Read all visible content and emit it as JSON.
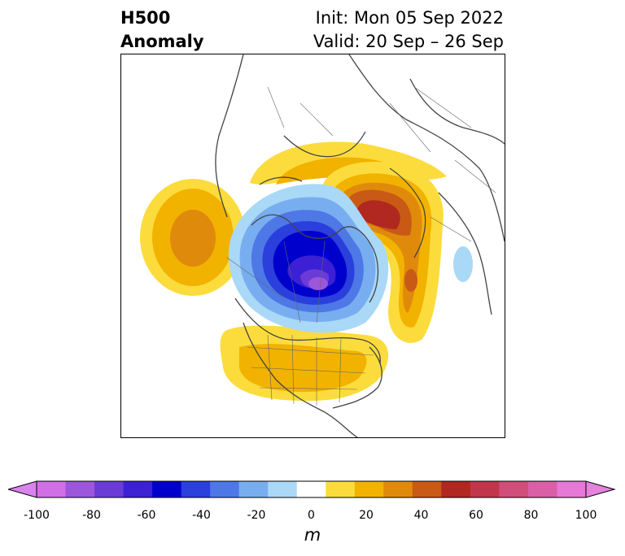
{
  "header": {
    "title_line1": "H500",
    "title_line2": "Anomaly",
    "init_text": "Init: Mon 05 Sep 2022",
    "valid_text": "Valid: 20 Sep – 26 Sep"
  },
  "map": {
    "projection": "north-polar-stereographic",
    "field": "500 hPa geopotential height anomaly",
    "features": [
      {
        "name": "negative-anomaly-arctic-canada",
        "sign": "negative",
        "peak_value": -100
      },
      {
        "name": "positive-anomaly-north-atlantic-europe",
        "sign": "positive",
        "peak_value": 70
      },
      {
        "name": "positive-anomaly-central-asia",
        "sign": "positive",
        "peak_value": 40
      },
      {
        "name": "positive-anomaly-north-pacific",
        "sign": "positive",
        "peak_value": 40
      },
      {
        "name": "positive-anomaly-united-states",
        "sign": "positive",
        "peak_value": 30
      }
    ]
  },
  "colorbar": {
    "levels": [
      -100,
      -90,
      -80,
      -70,
      -60,
      -50,
      -40,
      -30,
      -20,
      -10,
      10,
      20,
      30,
      40,
      50,
      60,
      70,
      80,
      90,
      100
    ],
    "colors": [
      "#d16fe6",
      "#9b56dc",
      "#6b3bd8",
      "#3b20d4",
      "#0000cc",
      "#2a3fdc",
      "#4d78e6",
      "#78aef0",
      "#aad8f7",
      "#ffffff",
      "#fcdc3c",
      "#f2b200",
      "#e08a0c",
      "#c95a16",
      "#b0281f",
      "#c2364c",
      "#d04e7a",
      "#da5fa6",
      "#e678d8"
    ],
    "extend_low_color": "#d884ec",
    "extend_high_color": "#e482dc",
    "tick_labels": [
      "-100",
      "-80",
      "-60",
      "-40",
      "-20",
      "0",
      "20",
      "40",
      "60",
      "80",
      "100"
    ],
    "unit": "m"
  }
}
